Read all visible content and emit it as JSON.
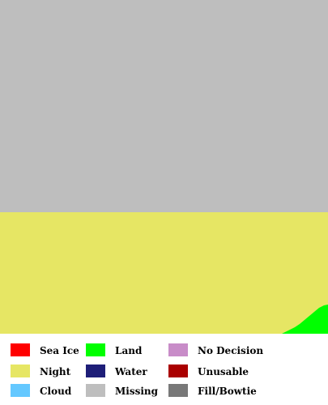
{
  "map": {
    "regions": [
      {
        "class": "Missing",
        "color": "#bebebe"
      },
      {
        "class": "Night",
        "color": "#e6e664"
      },
      {
        "class": "Land",
        "color": "#00ff00"
      }
    ]
  },
  "legend": {
    "items": [
      {
        "key": "sea_ice",
        "label": "Sea Ice",
        "color": "#ff0000"
      },
      {
        "key": "land",
        "label": "Land",
        "color": "#00ff00"
      },
      {
        "key": "no_decision",
        "label": "No Decision",
        "color": "#c88cc8"
      },
      {
        "key": "night",
        "label": "Night",
        "color": "#e6e664"
      },
      {
        "key": "water",
        "label": "Water",
        "color": "#1e1e78"
      },
      {
        "key": "unusable",
        "label": "Unusable",
        "color": "#aa0000"
      },
      {
        "key": "cloud",
        "label": "Cloud",
        "color": "#64c8ff"
      },
      {
        "key": "missing",
        "label": "Missing",
        "color": "#bebebe"
      },
      {
        "key": "fill_bowtie",
        "label": "Fill/Bowtie",
        "color": "#787878"
      }
    ]
  }
}
